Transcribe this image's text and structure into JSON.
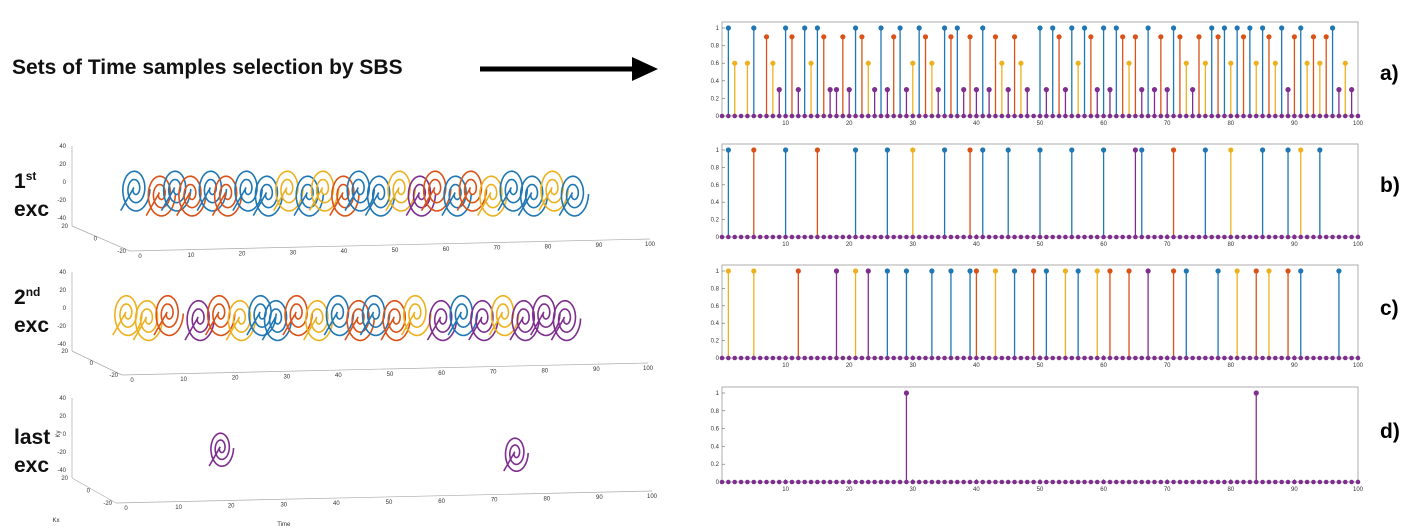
{
  "headline": "Sets of Time samples selection by SBS",
  "excitations": [
    {
      "num": "1",
      "sup": "st",
      "word": "exc"
    },
    {
      "num": "2",
      "sup": "nd",
      "word": "exc"
    },
    {
      "num": "last",
      "sup": "",
      "word": "exc"
    }
  ],
  "colors": {
    "blue": "#1f77b4",
    "orange": "#d95319",
    "yellow": "#edb120",
    "purple": "#7e2f8e"
  },
  "chart_data": [
    {
      "type": "stem",
      "panel_label": "a)",
      "xlim": [
        0,
        100
      ],
      "ylim": [
        0,
        1
      ],
      "xticks": [
        "10",
        "20",
        "30",
        "40",
        "50",
        "60",
        "70",
        "80",
        "90",
        "100"
      ],
      "yticks": [
        "0",
        "0.2",
        "0.4",
        "0.6",
        "0.8",
        "1"
      ],
      "series": [
        {
          "name": "blue",
          "height": 1,
          "x": [
            1,
            5,
            10,
            13,
            15,
            21,
            25,
            28,
            31,
            35,
            37,
            41,
            50,
            52,
            55,
            57,
            60,
            62,
            67,
            71,
            77,
            79,
            81,
            83,
            85,
            88,
            91,
            96
          ]
        },
        {
          "name": "orange",
          "height": 0.9,
          "x": [
            7,
            11,
            16,
            19,
            22,
            27,
            32,
            36,
            39,
            43,
            46,
            53,
            58,
            63,
            65,
            69,
            72,
            75,
            78,
            82,
            86,
            90,
            93,
            95
          ]
        },
        {
          "name": "yellow",
          "height": 0.6,
          "x": [
            2,
            4,
            8,
            14,
            23,
            30,
            33,
            44,
            47,
            56,
            64,
            73,
            76,
            80,
            84,
            87,
            92,
            94,
            98
          ]
        },
        {
          "name": "purple",
          "height": 0.3,
          "x": [
            9,
            12,
            17,
            18,
            20,
            24,
            26,
            29,
            34,
            38,
            40,
            42,
            45,
            48,
            51,
            54,
            59,
            61,
            66,
            68,
            70,
            74,
            89,
            97,
            99
          ]
        }
      ]
    },
    {
      "type": "stem",
      "panel_label": "b)",
      "xlim": [
        0,
        100
      ],
      "ylim": [
        0,
        1
      ],
      "xticks": [
        "10",
        "20",
        "30",
        "40",
        "50",
        "60",
        "70",
        "80",
        "90",
        "100"
      ],
      "yticks": [
        "0",
        "0.2",
        "0.4",
        "0.6",
        "0.8",
        "1"
      ],
      "series": [
        {
          "name": "blue",
          "height": 1,
          "x": [
            1,
            10,
            21,
            26,
            35,
            41,
            45,
            50,
            55,
            60,
            66,
            76,
            85,
            89,
            94
          ]
        },
        {
          "name": "orange",
          "height": 1,
          "x": [
            5,
            15,
            39,
            71
          ]
        },
        {
          "name": "yellow",
          "height": 1,
          "x": [
            30,
            80,
            91
          ]
        },
        {
          "name": "purple",
          "height": 1,
          "x": [
            65
          ]
        }
      ]
    },
    {
      "type": "stem",
      "panel_label": "c)",
      "xlim": [
        0,
        100
      ],
      "ylim": [
        0,
        1
      ],
      "xticks": [
        "10",
        "20",
        "30",
        "40",
        "50",
        "60",
        "70",
        "80",
        "90",
        "100"
      ],
      "yticks": [
        "0",
        "0.2",
        "0.4",
        "0.6",
        "0.8",
        "1"
      ],
      "series": [
        {
          "name": "blue",
          "height": 1,
          "x": [
            26,
            29,
            33,
            36,
            39,
            46,
            51,
            56,
            73,
            78,
            91,
            97
          ]
        },
        {
          "name": "orange",
          "height": 1,
          "x": [
            12,
            40,
            49,
            61,
            64,
            71,
            84,
            89
          ]
        },
        {
          "name": "yellow",
          "height": 1,
          "x": [
            1,
            5,
            21,
            43,
            54,
            59,
            81,
            86
          ]
        },
        {
          "name": "purple",
          "height": 1,
          "x": [
            18,
            23,
            67
          ]
        }
      ]
    },
    {
      "type": "stem",
      "panel_label": "d)",
      "xlim": [
        0,
        100
      ],
      "ylim": [
        0,
        1
      ],
      "xticks": [
        "10",
        "20",
        "30",
        "40",
        "50",
        "60",
        "70",
        "80",
        "90",
        "100"
      ],
      "yticks": [
        "0",
        "0.2",
        "0.4",
        "0.6",
        "0.8",
        "1"
      ],
      "series": [
        {
          "name": "purple",
          "height": 1,
          "x": [
            29,
            84
          ]
        }
      ]
    },
    {
      "type": "3d-spiral",
      "excitation": "1st",
      "x_ticks": [
        "0",
        "10",
        "20",
        "30",
        "40",
        "50",
        "60",
        "70",
        "80",
        "90",
        "100"
      ],
      "y_ticks": [
        "20",
        "0",
        "-20"
      ],
      "z_ticks": [
        "40",
        "20",
        "0",
        "-20",
        "-40"
      ],
      "spirals": [
        {
          "t": 1,
          "color": "blue"
        },
        {
          "t": 6,
          "color": "orange"
        },
        {
          "t": 9,
          "color": "blue"
        },
        {
          "t": 12,
          "color": "orange"
        },
        {
          "t": 16,
          "color": "blue"
        },
        {
          "t": 19,
          "color": "orange"
        },
        {
          "t": 23,
          "color": "blue"
        },
        {
          "t": 27,
          "color": "blue"
        },
        {
          "t": 31,
          "color": "yellow"
        },
        {
          "t": 35,
          "color": "blue"
        },
        {
          "t": 38,
          "color": "yellow"
        },
        {
          "t": 42,
          "color": "orange"
        },
        {
          "t": 45,
          "color": "blue"
        },
        {
          "t": 49,
          "color": "blue"
        },
        {
          "t": 53,
          "color": "yellow"
        },
        {
          "t": 57,
          "color": "purple"
        },
        {
          "t": 60,
          "color": "orange"
        },
        {
          "t": 64,
          "color": "blue"
        },
        {
          "t": 67,
          "color": "orange"
        },
        {
          "t": 71,
          "color": "yellow"
        },
        {
          "t": 75,
          "color": "blue"
        },
        {
          "t": 79,
          "color": "blue"
        },
        {
          "t": 83,
          "color": "yellow"
        },
        {
          "t": 87,
          "color": "blue"
        }
      ]
    },
    {
      "type": "3d-spiral",
      "excitation": "2nd",
      "x_ticks": [
        "0",
        "10",
        "20",
        "30",
        "40",
        "50",
        "60",
        "70",
        "80",
        "90",
        "100"
      ],
      "y_ticks": [
        "20",
        "0",
        "-20"
      ],
      "z_ticks": [
        "40",
        "20",
        "0",
        "-20",
        "-40"
      ],
      "spirals": [
        {
          "t": 1,
          "color": "yellow"
        },
        {
          "t": 5,
          "color": "yellow"
        },
        {
          "t": 9,
          "color": "orange"
        },
        {
          "t": 15,
          "color": "purple"
        },
        {
          "t": 19,
          "color": "orange"
        },
        {
          "t": 23,
          "color": "yellow"
        },
        {
          "t": 27,
          "color": "blue"
        },
        {
          "t": 30,
          "color": "blue"
        },
        {
          "t": 34,
          "color": "orange"
        },
        {
          "t": 38,
          "color": "yellow"
        },
        {
          "t": 42,
          "color": "blue"
        },
        {
          "t": 46,
          "color": "orange"
        },
        {
          "t": 49,
          "color": "blue"
        },
        {
          "t": 53,
          "color": "orange"
        },
        {
          "t": 57,
          "color": "yellow"
        },
        {
          "t": 62,
          "color": "purple"
        },
        {
          "t": 66,
          "color": "blue"
        },
        {
          "t": 70,
          "color": "purple"
        },
        {
          "t": 74,
          "color": "yellow"
        },
        {
          "t": 78,
          "color": "purple"
        },
        {
          "t": 82,
          "color": "purple"
        },
        {
          "t": 86,
          "color": "purple"
        }
      ]
    },
    {
      "type": "3d-spiral",
      "excitation": "last",
      "x_ticks": [
        "0",
        "10",
        "20",
        "30",
        "40",
        "50",
        "60",
        "70",
        "80",
        "90",
        "100"
      ],
      "y_ticks": [
        "20",
        "0",
        "-20"
      ],
      "z_ticks": [
        "40",
        "20",
        "0",
        "-20",
        "-40"
      ],
      "xlabel": "Time",
      "ylabel": "Kx",
      "zlabel": "Ky",
      "spirals": [
        {
          "t": 20,
          "color": "purple"
        },
        {
          "t": 76,
          "color": "purple"
        }
      ]
    }
  ]
}
